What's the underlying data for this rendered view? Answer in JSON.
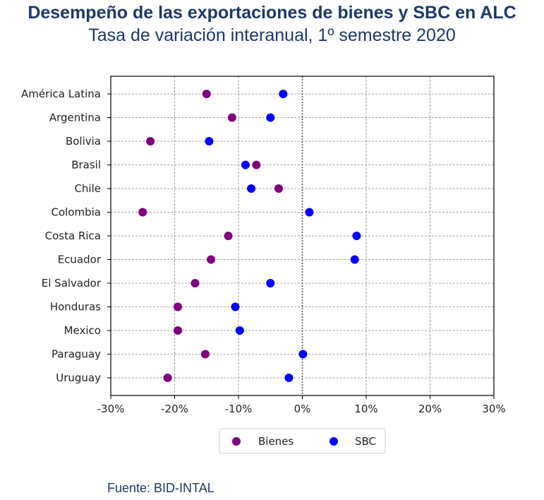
{
  "title": "Desempeño de las exportaciones de bienes y SBC en ALC",
  "subtitle": "Tasa de variación interanual, 1º semestre 2020",
  "source": "Fuente: BID-INTAL",
  "chart_data": {
    "type": "scatter",
    "orientation": "horizontal",
    "categories": [
      "América Latina",
      "Argentina",
      "Bolivia",
      "Brasil",
      "Chile",
      "Colombia",
      "Costa Rica",
      "Ecuador",
      "El Salvador",
      "Honduras",
      "Mexico",
      "Paraguay",
      "Uruguay"
    ],
    "series": [
      {
        "name": "Bienes",
        "color": "#800080",
        "values": [
          -15.0,
          -11.0,
          -23.8,
          -7.2,
          -3.7,
          -25.0,
          -11.6,
          -14.3,
          -16.8,
          -19.5,
          -19.5,
          -15.2,
          -21.1
        ]
      },
      {
        "name": "SBC",
        "color": "#0000ff",
        "values": [
          -3.0,
          -5.0,
          -14.6,
          -8.9,
          -8.0,
          1.1,
          8.5,
          8.2,
          -5.0,
          -10.5,
          -9.8,
          0.1,
          -2.1
        ]
      }
    ],
    "xlim": [
      -30,
      30
    ],
    "xticks": [
      "-30%",
      "-20%",
      "-10%",
      "0%",
      "10%",
      "20%",
      "30%"
    ],
    "xtick_values": [
      -30,
      -20,
      -10,
      0,
      10,
      20,
      30
    ],
    "grid": true,
    "reference_line": 0,
    "legend_position": "bottom-center"
  }
}
